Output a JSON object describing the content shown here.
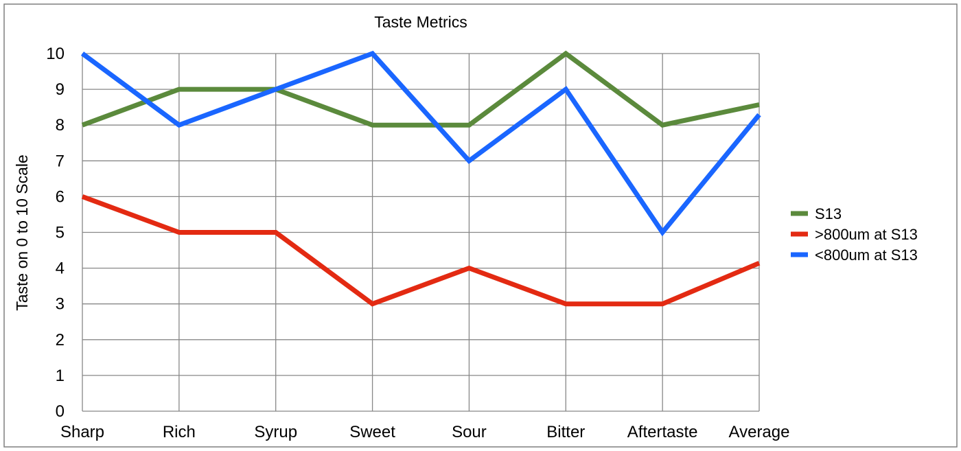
{
  "chart_data": {
    "type": "line",
    "title": "Taste Metrics",
    "xlabel": "",
    "ylabel": "Taste on 0 to 10 Scale",
    "categories": [
      "Sharp",
      "Rich",
      "Syrup",
      "Sweet",
      "Sour",
      "Bitter",
      "Aftertaste",
      "Average"
    ],
    "ylim": [
      0,
      10
    ],
    "yticks": [
      "0",
      "1",
      "2",
      "3",
      "4",
      "5",
      "6",
      "7",
      "8",
      "9",
      "10"
    ],
    "grid": true,
    "legend_position": "right",
    "series": [
      {
        "name": "S13",
        "color": "#5b8a3c",
        "values": [
          8,
          9,
          9,
          8,
          8,
          10,
          8,
          8.57
        ]
      },
      {
        "name": ">800um at S13",
        "color": "#e32a12",
        "values": [
          6,
          5,
          5,
          3,
          4,
          3,
          3,
          4.14
        ]
      },
      {
        "name": "<800um at S13",
        "color": "#1a66ff",
        "values": [
          10,
          8,
          9,
          10,
          7,
          9,
          5,
          8.29
        ]
      }
    ]
  }
}
